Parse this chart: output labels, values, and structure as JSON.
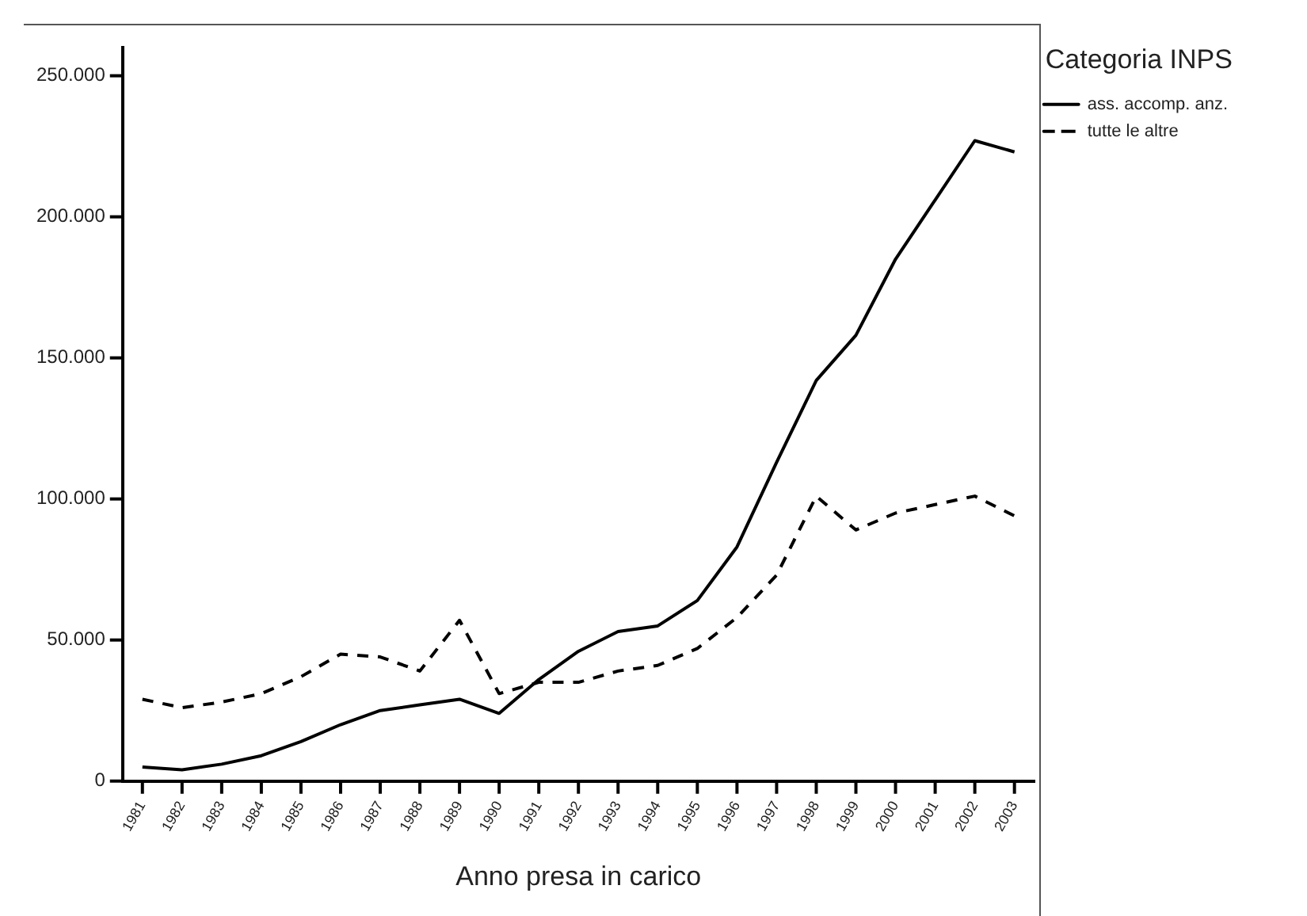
{
  "chart_data": {
    "type": "line",
    "xlabel": "Anno presa in carico",
    "legend_title": "Categoria INPS",
    "legend": "top right",
    "grid": false,
    "marker": "none",
    "categories": [
      "1981",
      "1982",
      "1983",
      "1984",
      "1985",
      "1986",
      "1987",
      "1988",
      "1989",
      "1990",
      "1991",
      "1992",
      "1993",
      "1994",
      "1995",
      "1996",
      "1997",
      "1998",
      "1999",
      "2000",
      "2001",
      "2002",
      "2003"
    ],
    "ylim": [
      0,
      260000
    ],
    "yticks": [
      {
        "value": 0,
        "label": "0"
      },
      {
        "value": 50000,
        "label": "50.000"
      },
      {
        "value": 100000,
        "label": "100.000"
      },
      {
        "value": 150000,
        "label": "150.000"
      },
      {
        "value": 200000,
        "label": "200.000"
      },
      {
        "value": 250000,
        "label": "250.000"
      }
    ],
    "series": [
      {
        "name": "ass. accomp. anz.",
        "color": "#000000",
        "line_style": "solid",
        "values": [
          5000,
          4000,
          6000,
          9000,
          14000,
          20000,
          25000,
          27000,
          29000,
          24000,
          36000,
          46000,
          53000,
          55000,
          64000,
          83000,
          113000,
          142000,
          158000,
          185000,
          206000,
          227000,
          223000
        ]
      },
      {
        "name": "tutte le altre",
        "color": "#000000",
        "line_style": "dashed",
        "values": [
          29000,
          26000,
          28000,
          31000,
          37000,
          45000,
          44000,
          39000,
          57000,
          31000,
          35000,
          35000,
          39000,
          41000,
          47000,
          58000,
          73000,
          101000,
          89000,
          95000,
          98000,
          101000,
          94000
        ]
      }
    ]
  }
}
